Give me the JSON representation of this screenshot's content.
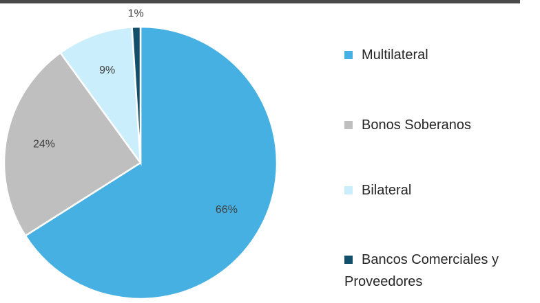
{
  "chart_data": {
    "type": "pie",
    "categories": [
      "Multilateral",
      "Bonos Soberanos",
      "Bilateral",
      "Bancos Comerciales y Proveedores"
    ],
    "values": [
      66,
      24,
      9,
      1
    ],
    "value_labels": [
      "66%",
      "24%",
      "9%",
      "1%"
    ],
    "colors": [
      "#45b0e1",
      "#bfbfbf",
      "#caeefb",
      "#124f6b"
    ],
    "legend": "right"
  }
}
